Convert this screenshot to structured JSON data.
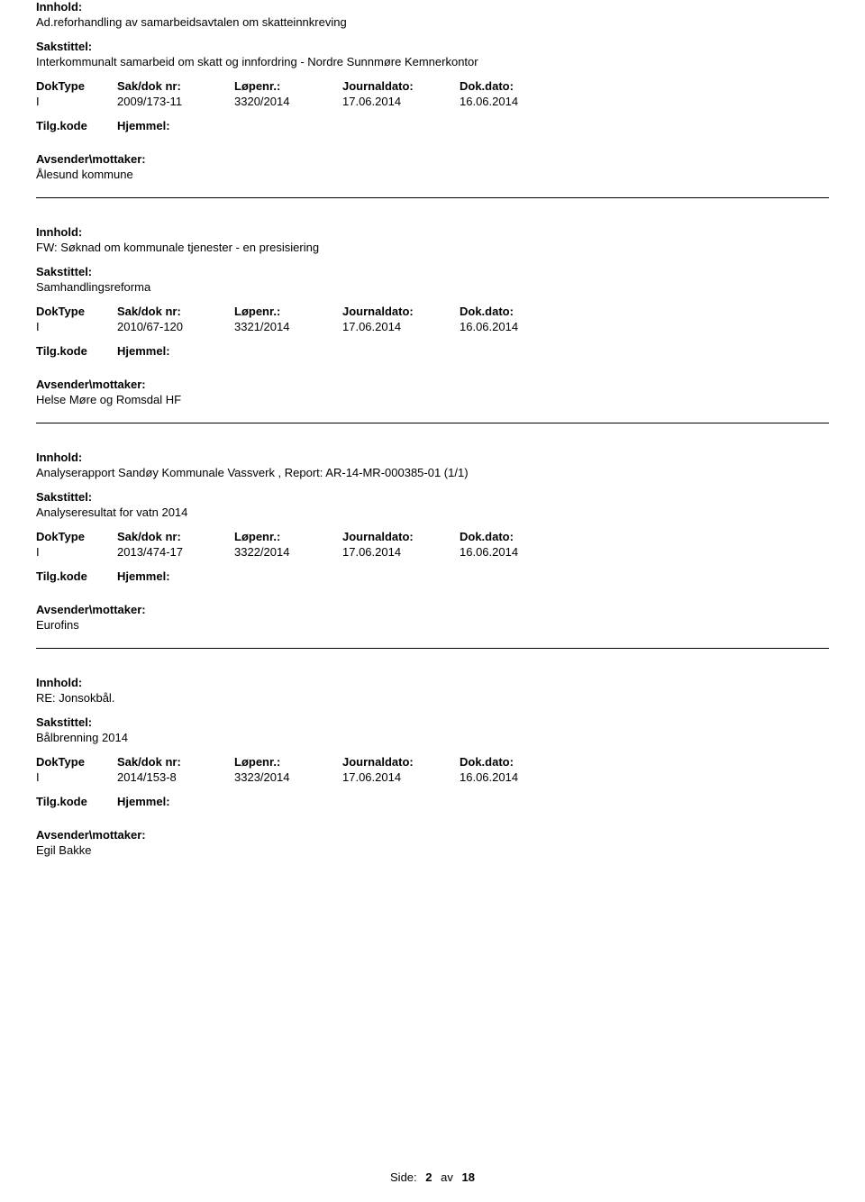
{
  "labels": {
    "innhold": "Innhold:",
    "sakstittel": "Sakstittel:",
    "doktype": "DokType",
    "sakdoknr": "Sak/dok nr:",
    "lopenr": "Løpenr.:",
    "journaldato": "Journaldato:",
    "dokdato": "Dok.dato:",
    "tilgkode": "Tilg.kode",
    "hjemmel": "Hjemmel:",
    "avsender": "Avsender\\mottaker:"
  },
  "entries": [
    {
      "innhold": "Ad.reforhandling av samarbeidsavtalen om skatteinnkreving",
      "sakstittel": "Interkommunalt samarbeid om skatt og innfordring - Nordre Sunnmøre Kemnerkontor",
      "doktype": "I",
      "sakdoknr": "2009/173-11",
      "lopenr": "3320/2014",
      "journaldato": "17.06.2014",
      "dokdato": "16.06.2014",
      "tilgkode": "",
      "avsender": "Ålesund kommune"
    },
    {
      "innhold": "FW: Søknad om kommunale tjenester - en presisiering",
      "sakstittel": "Samhandlingsreforma",
      "doktype": "I",
      "sakdoknr": "2010/67-120",
      "lopenr": "3321/2014",
      "journaldato": "17.06.2014",
      "dokdato": "16.06.2014",
      "tilgkode": "",
      "avsender": "Helse Møre og Romsdal HF"
    },
    {
      "innhold": "Analyserapport Sandøy Kommunale Vassverk , Report: AR-14-MR-000385-01  (1/1)",
      "sakstittel": "Analyseresultat for vatn 2014",
      "doktype": "I",
      "sakdoknr": "2013/474-17",
      "lopenr": "3322/2014",
      "journaldato": "17.06.2014",
      "dokdato": "16.06.2014",
      "tilgkode": "",
      "avsender": "Eurofins"
    },
    {
      "innhold": "RE: Jonsokbål.",
      "sakstittel": "Bålbrenning 2014",
      "doktype": "I",
      "sakdoknr": "2014/153-8",
      "lopenr": "3323/2014",
      "journaldato": "17.06.2014",
      "dokdato": "16.06.2014",
      "tilgkode": "",
      "avsender": "Egil Bakke"
    }
  ],
  "footer": {
    "label": "Side:",
    "page": "2",
    "of": "av",
    "total": "18"
  }
}
